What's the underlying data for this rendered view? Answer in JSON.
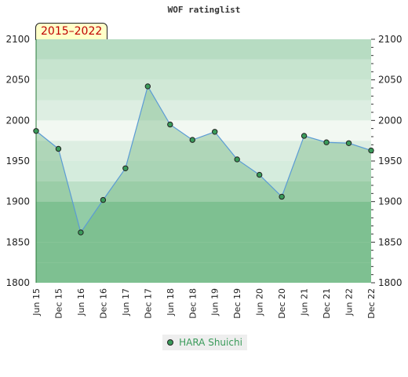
{
  "chart_data": {
    "type": "area",
    "title": "WOF ratinglist",
    "period_label": "2015–2022",
    "categories": [
      "Jun 15",
      "Dec 15",
      "Jun 16",
      "Dec 16",
      "Jun 17",
      "Dec 17",
      "Jun 18",
      "Dec 18",
      "Jun 19",
      "Dec 19",
      "Jun 20",
      "Dec 20",
      "Jun 21",
      "Dec 21",
      "Jun 22",
      "Dec 22"
    ],
    "series": [
      {
        "name": "HARA Shuichi",
        "values": [
          1987,
          1965,
          1862,
          1902,
          1941,
          2042,
          1995,
          1976,
          1986,
          1952,
          1933,
          1906,
          1981,
          1973,
          1972,
          1963
        ]
      }
    ],
    "ylim": [
      1800,
      2100
    ],
    "yticks": [
      "1800",
      "1850",
      "1900",
      "1950",
      "2000",
      "2050",
      "2100"
    ],
    "legend_position": "bottom-center",
    "grid": true,
    "colors": {
      "fill": "#5aaa6a",
      "line": "#5b9bd5",
      "marker": "#3a9b5a",
      "band_dark": "#8ccba0",
      "band_light": "#f2f8f2"
    }
  }
}
